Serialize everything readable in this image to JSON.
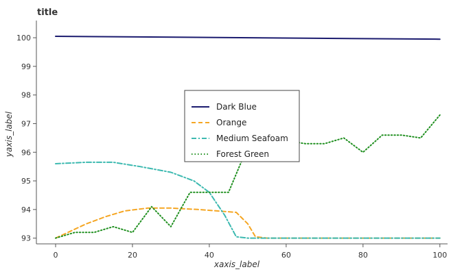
{
  "chart_data": {
    "type": "line",
    "title": "title",
    "xlabel": "xaxis_label",
    "ylabel": "yaxis_label",
    "xlim": [
      -5,
      102
    ],
    "ylim": [
      92.8,
      100.6
    ],
    "x_ticks": [
      0,
      20,
      40,
      60,
      80,
      100
    ],
    "y_ticks": [
      93,
      94,
      95,
      96,
      97,
      98,
      99,
      100
    ],
    "grid": false,
    "legend_position": "center-right",
    "series": [
      {
        "name": "Dark Blue",
        "color": "#1a1a6e",
        "dash": "solid",
        "x": [
          0,
          100
        ],
        "y": [
          100.05,
          99.95
        ]
      },
      {
        "name": "Orange",
        "color": "#f5a623",
        "dash": "dash",
        "x": [
          0,
          4,
          8,
          13,
          18,
          24,
          30,
          37,
          42,
          47,
          50,
          52,
          55,
          60,
          70,
          80,
          90,
          100
        ],
        "y": [
          93.0,
          93.25,
          93.5,
          93.75,
          93.95,
          94.05,
          94.05,
          94.0,
          93.95,
          93.9,
          93.5,
          93.05,
          93.0,
          93.0,
          93.0,
          93.0,
          93.0,
          93.0
        ]
      },
      {
        "name": "Medium Seafoam",
        "color": "#3cb9b0",
        "dash": "dashdot",
        "x": [
          0,
          8,
          15,
          22,
          30,
          36,
          40,
          44,
          47,
          50,
          55,
          65,
          75,
          85,
          100
        ],
        "y": [
          95.6,
          95.65,
          95.65,
          95.5,
          95.3,
          95.0,
          94.6,
          93.8,
          93.05,
          93.0,
          93.0,
          93.0,
          93.0,
          93.0,
          93.0
        ]
      },
      {
        "name": "Forest Green",
        "color": "#1f8f1f",
        "dash": "dot",
        "x": [
          0,
          5,
          10,
          15,
          20,
          25,
          30,
          35,
          40,
          45,
          50,
          55,
          60,
          65,
          70,
          75,
          80,
          85,
          90,
          95,
          100
        ],
        "y": [
          93.0,
          93.2,
          93.2,
          93.4,
          93.2,
          94.1,
          93.4,
          94.6,
          94.6,
          94.6,
          96.2,
          96.3,
          96.4,
          96.3,
          96.3,
          96.5,
          96.0,
          96.6,
          96.6,
          96.5,
          97.3
        ]
      }
    ]
  }
}
